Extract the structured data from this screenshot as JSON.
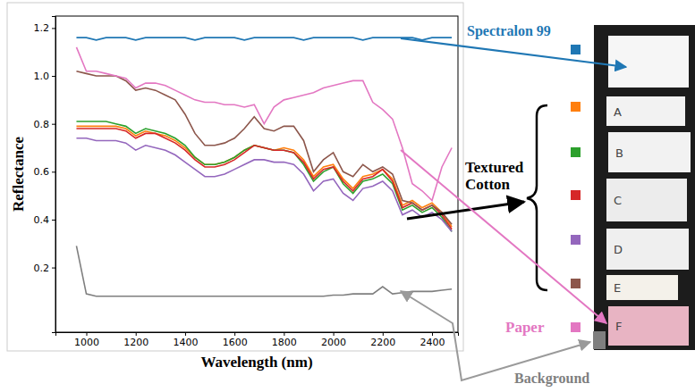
{
  "chart_data": {
    "type": "line",
    "xlabel": "Wavelength (nm)",
    "ylabel": "Reflectance",
    "x": [
      960,
      1000,
      1040,
      1080,
      1120,
      1160,
      1200,
      1240,
      1280,
      1320,
      1360,
      1400,
      1440,
      1480,
      1520,
      1560,
      1600,
      1640,
      1680,
      1720,
      1760,
      1800,
      1840,
      1880,
      1920,
      1960,
      2000,
      2040,
      2080,
      2120,
      2160,
      2200,
      2240,
      2280,
      2320,
      2360,
      2400,
      2440,
      2480
    ],
    "xlim": [
      875,
      2505
    ],
    "xticks": [
      1000,
      1200,
      1400,
      1600,
      1800,
      2000,
      2200,
      2400
    ],
    "ylim": [
      -0.07,
      1.25
    ],
    "yticks": [
      0.2,
      0.4,
      0.6,
      0.8,
      {
        "value": 1.0,
        "label": "1.0"
      },
      1.2
    ],
    "series": [
      {
        "name": "Spectralon 99",
        "color": "#1f77b4",
        "values": [
          1.16,
          1.16,
          1.15,
          1.16,
          1.16,
          1.16,
          1.15,
          1.16,
          1.16,
          1.16,
          1.16,
          1.16,
          1.15,
          1.16,
          1.16,
          1.16,
          1.16,
          1.15,
          1.16,
          1.16,
          1.16,
          1.16,
          1.16,
          1.15,
          1.16,
          1.16,
          1.16,
          1.16,
          1.16,
          1.15,
          1.16,
          1.16,
          1.16,
          1.16,
          1.16,
          1.15,
          1.16,
          1.16,
          1.16
        ]
      },
      {
        "name": "A",
        "color": "#ff7f0e",
        "values": [
          0.79,
          0.79,
          0.79,
          0.79,
          0.79,
          0.78,
          0.75,
          0.77,
          0.76,
          0.75,
          0.73,
          0.7,
          0.66,
          0.63,
          0.63,
          0.64,
          0.66,
          0.69,
          0.71,
          0.7,
          0.69,
          0.7,
          0.69,
          0.65,
          0.58,
          0.62,
          0.63,
          0.57,
          0.53,
          0.58,
          0.59,
          0.61,
          0.57,
          0.46,
          0.48,
          0.45,
          0.47,
          0.43,
          0.37
        ]
      },
      {
        "name": "B",
        "color": "#2ca02c",
        "values": [
          0.81,
          0.81,
          0.81,
          0.81,
          0.8,
          0.79,
          0.76,
          0.78,
          0.77,
          0.76,
          0.74,
          0.71,
          0.66,
          0.63,
          0.63,
          0.64,
          0.66,
          0.69,
          0.71,
          0.7,
          0.69,
          0.69,
          0.68,
          0.63,
          0.56,
          0.6,
          0.62,
          0.55,
          0.51,
          0.56,
          0.57,
          0.59,
          0.55,
          0.44,
          0.46,
          0.43,
          0.45,
          0.41,
          0.35
        ]
      },
      {
        "name": "C",
        "color": "#d62728",
        "values": [
          0.78,
          0.78,
          0.78,
          0.78,
          0.78,
          0.77,
          0.74,
          0.76,
          0.76,
          0.74,
          0.72,
          0.69,
          0.65,
          0.62,
          0.62,
          0.63,
          0.65,
          0.68,
          0.71,
          0.7,
          0.69,
          0.69,
          0.68,
          0.64,
          0.57,
          0.61,
          0.62,
          0.56,
          0.52,
          0.57,
          0.58,
          0.61,
          0.56,
          0.45,
          0.47,
          0.44,
          0.46,
          0.42,
          0.36
        ]
      },
      {
        "name": "D",
        "color": "#9467bd",
        "values": [
          0.74,
          0.74,
          0.73,
          0.73,
          0.73,
          0.72,
          0.69,
          0.71,
          0.7,
          0.69,
          0.67,
          0.64,
          0.61,
          0.58,
          0.58,
          0.59,
          0.61,
          0.63,
          0.65,
          0.65,
          0.64,
          0.64,
          0.63,
          0.59,
          0.52,
          0.56,
          0.57,
          0.51,
          0.48,
          0.53,
          0.54,
          0.56,
          0.52,
          0.42,
          0.44,
          0.41,
          0.43,
          0.4,
          0.35
        ]
      },
      {
        "name": "E",
        "color": "#8c564b",
        "values": [
          1.02,
          1.01,
          1.0,
          1.0,
          1.0,
          0.98,
          0.94,
          0.95,
          0.94,
          0.92,
          0.9,
          0.84,
          0.76,
          0.71,
          0.71,
          0.72,
          0.74,
          0.78,
          0.83,
          0.78,
          0.77,
          0.79,
          0.79,
          0.73,
          0.6,
          0.65,
          0.68,
          0.6,
          0.58,
          0.63,
          0.6,
          0.62,
          0.59,
          0.48,
          0.47,
          0.44,
          0.46,
          0.43,
          0.38
        ]
      },
      {
        "name": "F",
        "color": "#e377c2",
        "values": [
          1.12,
          1.02,
          1.02,
          1.01,
          1.0,
          0.99,
          0.95,
          0.97,
          0.97,
          0.96,
          0.94,
          0.92,
          0.9,
          0.89,
          0.89,
          0.88,
          0.88,
          0.87,
          0.88,
          0.8,
          0.87,
          0.9,
          0.91,
          0.92,
          0.93,
          0.95,
          0.96,
          0.97,
          0.98,
          0.98,
          0.89,
          0.86,
          0.82,
          0.7,
          0.55,
          0.52,
          0.48,
          0.62,
          0.7
        ]
      },
      {
        "name": "Background",
        "color": "#7f7f7f",
        "values": [
          0.29,
          0.09,
          0.08,
          0.08,
          0.08,
          0.08,
          0.08,
          0.08,
          0.08,
          0.08,
          0.08,
          0.08,
          0.08,
          0.08,
          0.08,
          0.08,
          0.08,
          0.08,
          0.08,
          0.08,
          0.08,
          0.08,
          0.08,
          0.08,
          0.08,
          0.08,
          0.085,
          0.085,
          0.09,
          0.09,
          0.09,
          0.12,
          0.09,
          0.095,
          0.1,
          0.1,
          0.1,
          0.105,
          0.11
        ]
      }
    ],
    "annotations": [
      "Textured Cotton",
      "Paper"
    ]
  }
}
